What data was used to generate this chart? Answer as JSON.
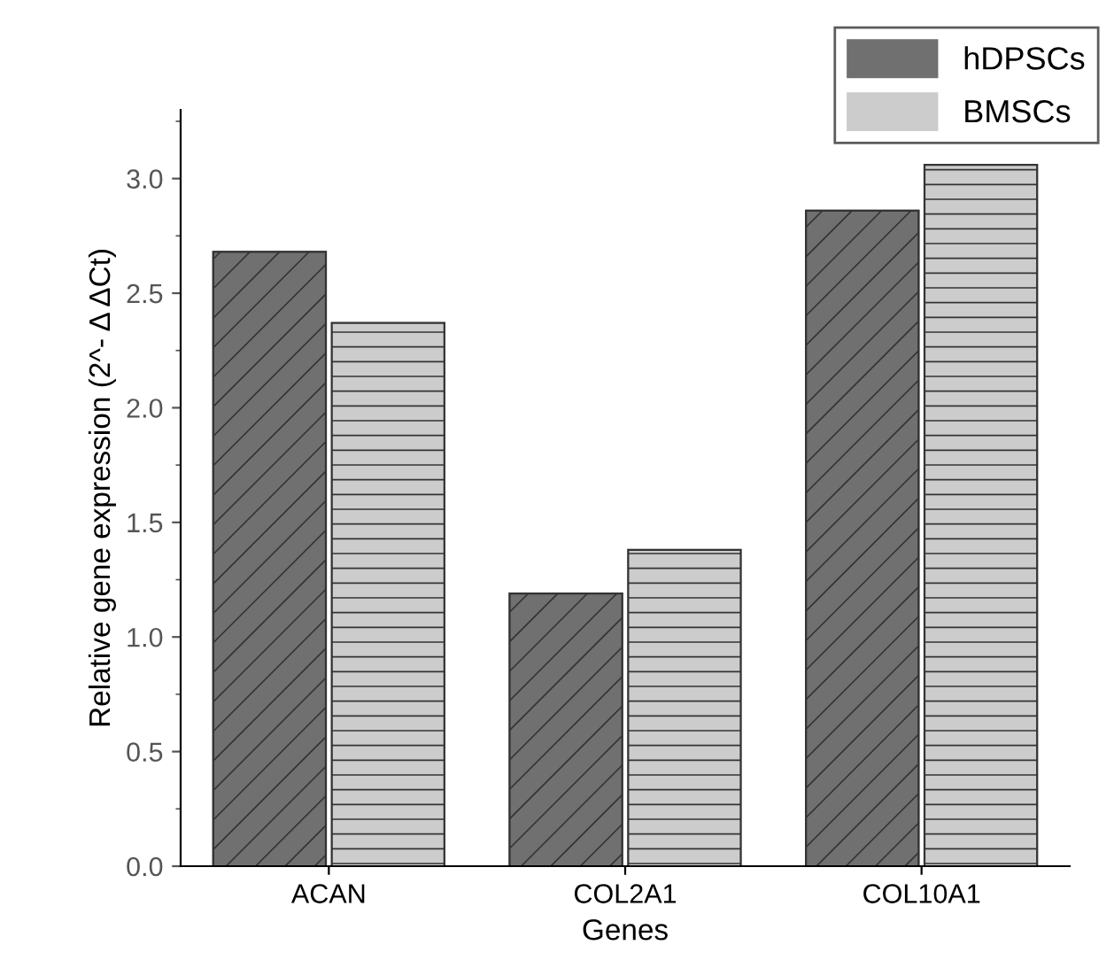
{
  "chart_data": {
    "type": "bar",
    "xlabel": "Genes",
    "ylabel": "Relative gene expression (2^- Δ ΔCt)",
    "categories": [
      "ACAN",
      "COL2A1",
      "COL10A1"
    ],
    "series": [
      {
        "name": "hDPSCs",
        "color": "#707070",
        "values": [
          2.68,
          1.19,
          2.86
        ]
      },
      {
        "name": "BMSCs",
        "color": "#cccccc",
        "values": [
          2.37,
          1.38,
          3.06
        ]
      }
    ],
    "ylim": [
      0,
      3.3
    ],
    "yticks": [
      {
        "value": 0,
        "label": "0.0"
      },
      0.5,
      {
        "value": 1,
        "label": "1.0"
      },
      1.5,
      {
        "value": 2,
        "label": "2.0"
      },
      2.5,
      {
        "value": 3,
        "label": "3.0"
      }
    ],
    "grid": false,
    "legend": "top right"
  }
}
